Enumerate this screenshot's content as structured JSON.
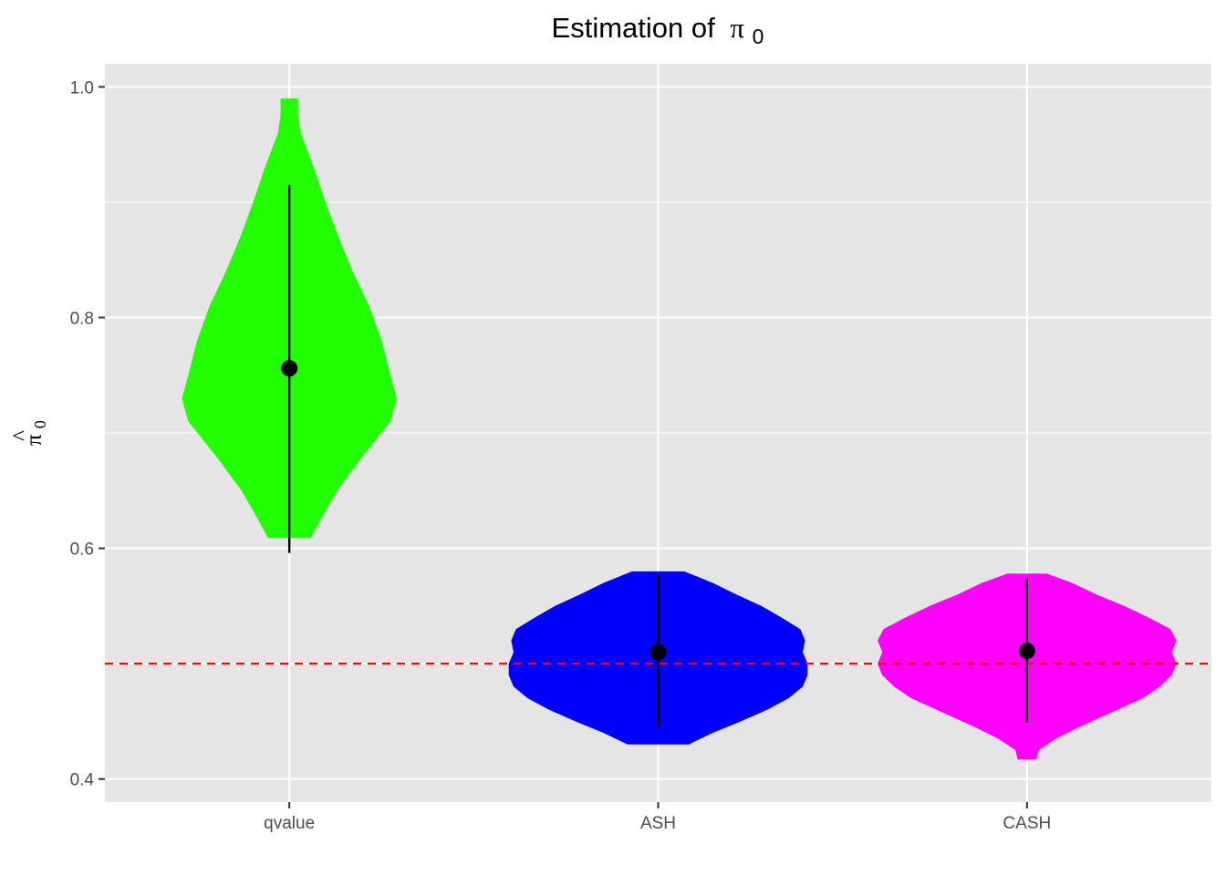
{
  "chart_data": {
    "type": "violin",
    "title": "Estimation of",
    "title_symbol": "π",
    "title_subscript": "0",
    "ylabel_hat": "^",
    "ylabel_symbol": "π",
    "ylabel_subscript": "0",
    "xlabel": "",
    "ylim": [
      0.38,
      1.02
    ],
    "yticks": [
      0.4,
      0.6,
      0.8,
      1.0
    ],
    "ytick_labels": [
      "0.4",
      "0.6",
      "0.8",
      "1.0"
    ],
    "categories": [
      "qvalue",
      "ASH",
      "CASH"
    ],
    "colors": {
      "qvalue": "#22ff00",
      "ASH": "#0000ff",
      "CASH": "#ff00ff",
      "panel_background": "#e5e5e5",
      "grid": "#ffffff",
      "reference_line": "#ff0000"
    },
    "reference_line": {
      "y": 0.5,
      "style": "dashed"
    },
    "grid": true,
    "legend": "none",
    "series": [
      {
        "category": "qvalue",
        "mean": 0.756,
        "range": [
          0.596,
          0.915
        ],
        "density": [
          [
            0.609,
            0.143
          ],
          [
            0.625,
            0.21
          ],
          [
            0.65,
            0.32
          ],
          [
            0.68,
            0.492
          ],
          [
            0.71,
            0.677
          ],
          [
            0.73,
            0.719
          ],
          [
            0.75,
            0.677
          ],
          [
            0.78,
            0.618
          ],
          [
            0.81,
            0.534
          ],
          [
            0.84,
            0.424
          ],
          [
            0.87,
            0.328
          ],
          [
            0.9,
            0.242
          ],
          [
            0.93,
            0.164
          ],
          [
            0.96,
            0.076
          ],
          [
            0.975,
            0.059
          ],
          [
            0.99,
            0.059
          ]
        ]
      },
      {
        "category": "ASH",
        "mean": 0.51,
        "range": [
          0.445,
          0.576
        ],
        "density": [
          [
            0.43,
            0.206
          ],
          [
            0.44,
            0.365
          ],
          [
            0.45,
            0.555
          ],
          [
            0.46,
            0.73
          ],
          [
            0.47,
            0.873
          ],
          [
            0.48,
            0.968
          ],
          [
            0.49,
            1.0
          ],
          [
            0.5,
            1.0
          ],
          [
            0.51,
            0.968
          ],
          [
            0.52,
            0.984
          ],
          [
            0.53,
            0.952
          ],
          [
            0.54,
            0.825
          ],
          [
            0.55,
            0.69
          ],
          [
            0.56,
            0.524
          ],
          [
            0.57,
            0.365
          ],
          [
            0.58,
            0.175
          ]
        ]
      },
      {
        "category": "CASH",
        "mean": 0.511,
        "range": [
          0.449,
          0.574
        ],
        "density": [
          [
            0.417,
            0.062
          ],
          [
            0.425,
            0.078
          ],
          [
            0.435,
            0.194
          ],
          [
            0.445,
            0.349
          ],
          [
            0.455,
            0.519
          ],
          [
            0.47,
            0.775
          ],
          [
            0.48,
            0.89
          ],
          [
            0.49,
            0.969
          ],
          [
            0.5,
            1.0
          ],
          [
            0.51,
            0.969
          ],
          [
            0.52,
            1.0
          ],
          [
            0.53,
            0.961
          ],
          [
            0.54,
            0.814
          ],
          [
            0.55,
            0.651
          ],
          [
            0.56,
            0.465
          ],
          [
            0.57,
            0.302
          ],
          [
            0.578,
            0.132
          ]
        ]
      }
    ]
  }
}
